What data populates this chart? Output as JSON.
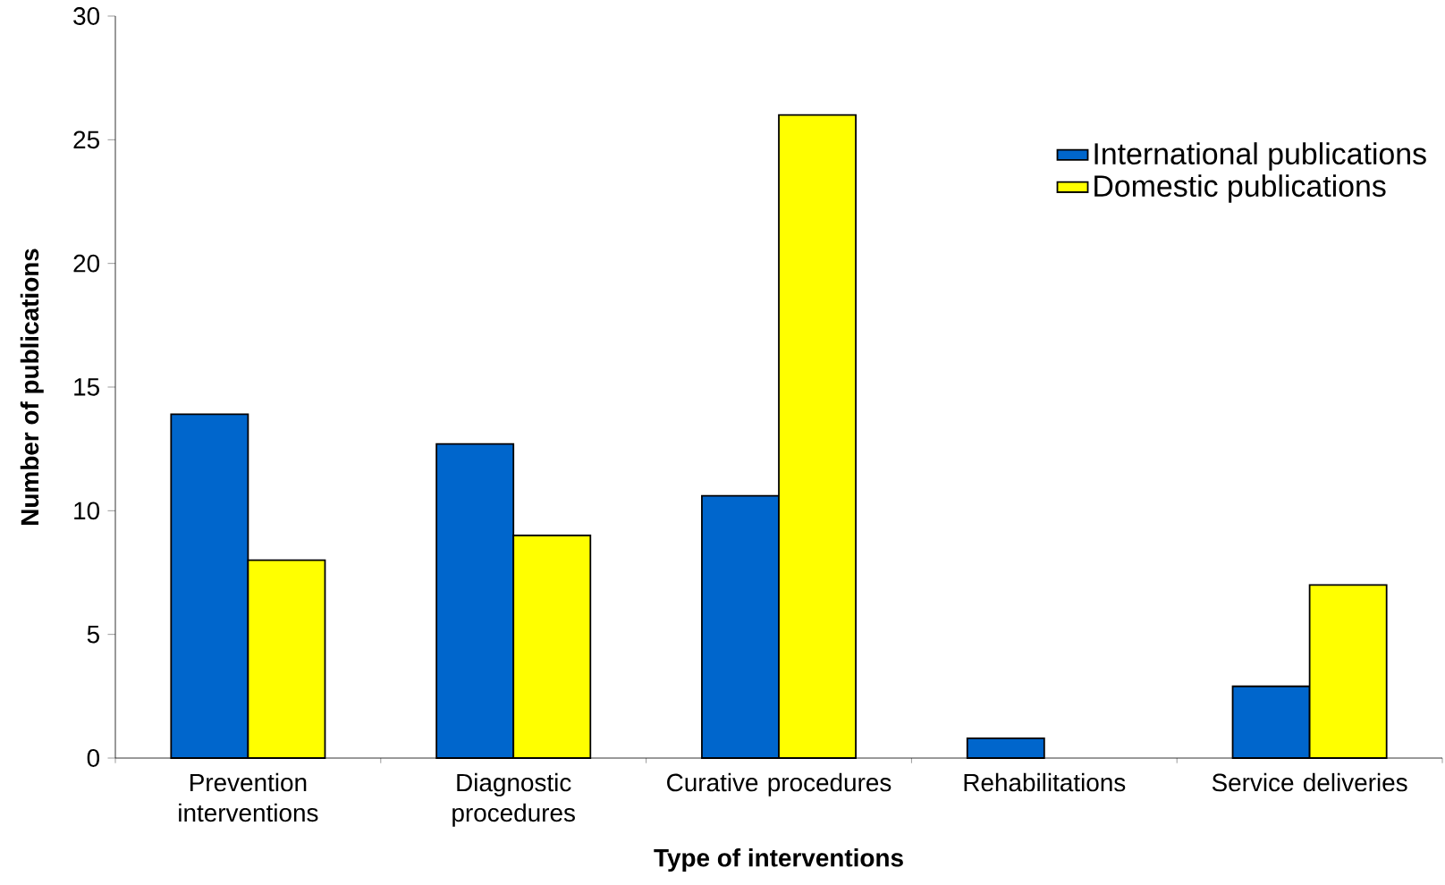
{
  "chart_data": {
    "type": "bar",
    "xlabel": "Type of interventions",
    "ylabel": "Number of publications",
    "categories": [
      "Prevention interventions",
      "Diagnostic procedures",
      "Curative procedures",
      "Rehabilitations",
      "Service deliveries"
    ],
    "series": [
      {
        "name": "International publications",
        "color": "#0066cc",
        "values": [
          13.9,
          12.7,
          10.6,
          0.8,
          2.9
        ]
      },
      {
        "name": "Domestic publications",
        "color": "#ffff00",
        "values": [
          8,
          9,
          26,
          null,
          7
        ]
      }
    ],
    "ylim": [
      0,
      30
    ],
    "yticks": [
      0,
      5,
      10,
      15,
      20,
      25,
      30
    ],
    "legend": "top right",
    "grid": false
  }
}
